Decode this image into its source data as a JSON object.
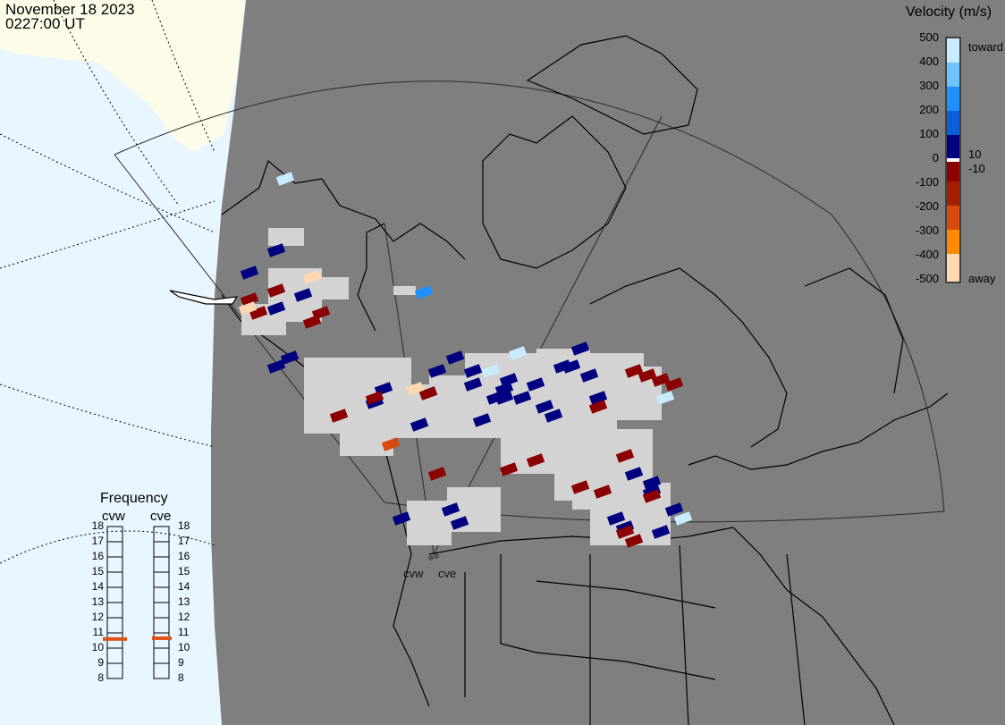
{
  "header": {
    "date": "November 18 2023",
    "time": "0227:00 UT"
  },
  "velocity_legend": {
    "title": "Velocity (m/s)",
    "ticks": [
      "500",
      "400",
      "300",
      "200",
      "100",
      "10",
      "0",
      "-10",
      "-100",
      "-200",
      "-300",
      "-400",
      "-500"
    ],
    "toward_label": "toward",
    "away_label": "away",
    "colors": {
      "light_blue": "#c8ecff",
      "sky_blue": "#1e90ff",
      "mid_blue": "#0a3fb8",
      "navy": "#000080",
      "dark_red": "#8b0000",
      "red_orange": "#d84a0c",
      "orange": "#ff8c00",
      "peach": "#ffd7b0",
      "gray_scatter": "#d3d3d3"
    }
  },
  "frequency_panel": {
    "title": "Frequency",
    "radars": [
      {
        "name": "cvw",
        "frequency_mhz": 10.6
      },
      {
        "name": "cve",
        "frequency_mhz": 10.65
      }
    ],
    "scale": [
      "18",
      "17",
      "16",
      "15",
      "14",
      "13",
      "12",
      "11",
      "10",
      "9",
      "8"
    ],
    "marker_color": "#e0521a"
  },
  "sites": [
    {
      "label": "cvw"
    },
    {
      "label": "cve"
    }
  ],
  "map_colors": {
    "ocean": "#e8f6ff",
    "land_dark": "#7f7f7f",
    "land_light": "#fdfce8"
  }
}
